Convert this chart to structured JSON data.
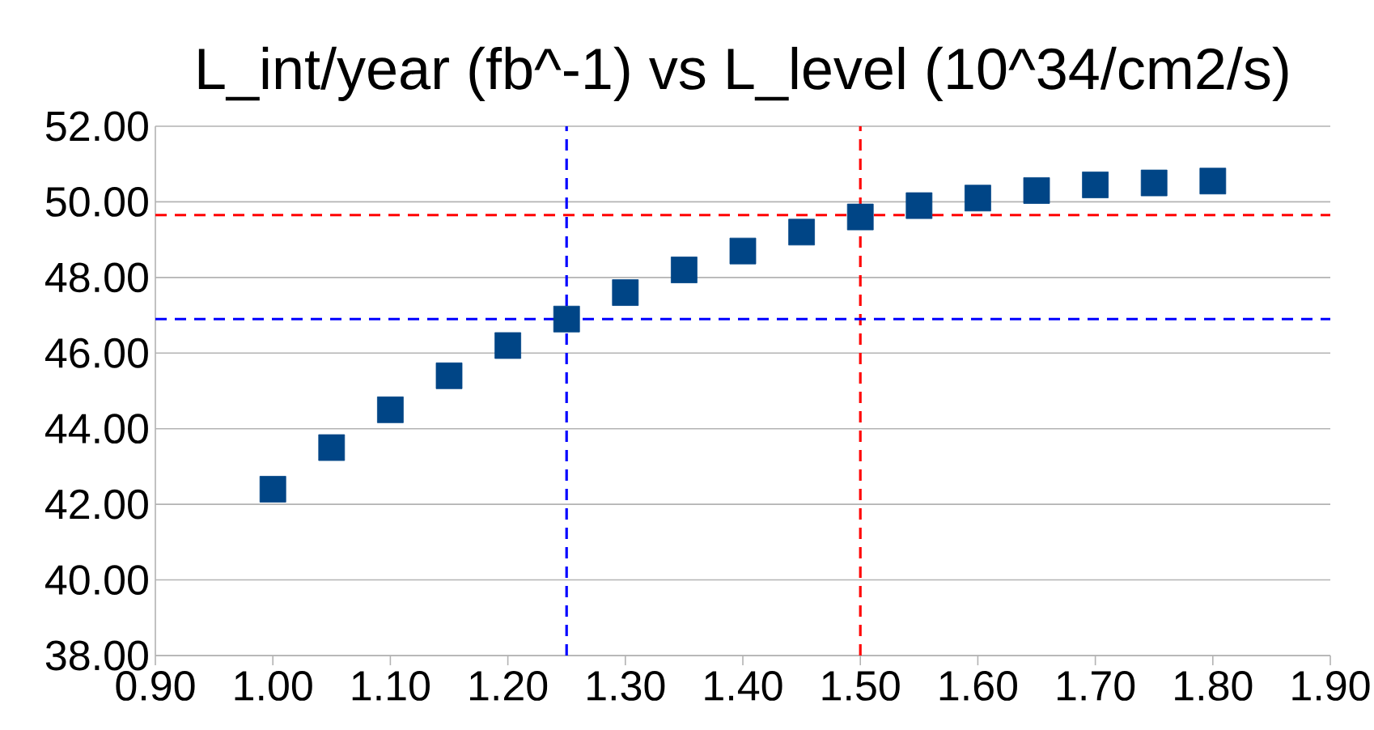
{
  "chart_data": {
    "type": "scatter",
    "title": "L_int/year (fb^-1) vs L_level (10^34/cm2/s)",
    "x": [
      1.0,
      1.05,
      1.1,
      1.15,
      1.2,
      1.25,
      1.3,
      1.35,
      1.4,
      1.45,
      1.5,
      1.55,
      1.6,
      1.65,
      1.7,
      1.75,
      1.8
    ],
    "series": [
      {
        "color": "#004586",
        "values": [
          42.4,
          43.5,
          44.5,
          45.4,
          46.2,
          46.9,
          47.6,
          48.2,
          48.7,
          49.2,
          49.6,
          49.9,
          50.1,
          50.3,
          50.45,
          50.5,
          50.55
        ]
      }
    ],
    "marker": "square",
    "grid": "y",
    "xlim": [
      0.9,
      1.9
    ],
    "ylim": [
      38,
      52
    ],
    "xticks": [
      {
        "value": 0.9,
        "label": "0.90"
      },
      {
        "value": 1.0,
        "label": "1.00"
      },
      {
        "value": 1.1,
        "label": "1.10"
      },
      {
        "value": 1.2,
        "label": "1.20"
      },
      {
        "value": 1.3,
        "label": "1.30"
      },
      {
        "value": 1.4,
        "label": "1.40"
      },
      {
        "value": 1.5,
        "label": "1.50"
      },
      {
        "value": 1.6,
        "label": "1.60"
      },
      {
        "value": 1.7,
        "label": "1.70"
      },
      {
        "value": 1.8,
        "label": "1.80"
      },
      {
        "value": 1.9,
        "label": "1.90"
      }
    ],
    "yticks": [
      {
        "value": 38,
        "label": "38.00"
      },
      {
        "value": 40,
        "label": "40.00"
      },
      {
        "value": 42,
        "label": "42.00"
      },
      {
        "value": 44,
        "label": "44.00"
      },
      {
        "value": 46,
        "label": "46.00"
      },
      {
        "value": 48,
        "label": "48.00"
      },
      {
        "value": 50,
        "label": "50.00"
      },
      {
        "value": 52,
        "label": "52.00"
      }
    ],
    "ref_lines": [
      {
        "axis": "x",
        "value": 1.25,
        "color": "#0000ff",
        "line_style": "dashed"
      },
      {
        "axis": "x",
        "value": 1.5,
        "color": "#ff0000",
        "line_style": "dashed"
      },
      {
        "axis": "y",
        "value": 46.9,
        "color": "#0000ff",
        "line_style": "dashed"
      },
      {
        "axis": "y",
        "value": 49.65,
        "color": "#ff0000",
        "line_style": "dashed"
      }
    ]
  }
}
